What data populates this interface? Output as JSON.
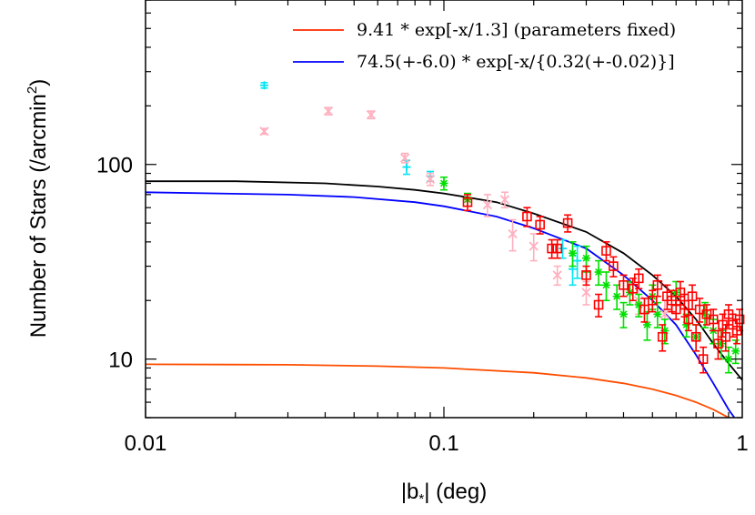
{
  "chart_data": {
    "type": "scatter",
    "x_scale": "log",
    "y_scale": "log",
    "xlim": [
      0.01,
      1
    ],
    "ylim": [
      5,
      700
    ],
    "xlabel": "|b*| (deg)",
    "ylabel": "Number of Stars (/arcmin2)",
    "x_ticks": [
      {
        "value": 0.01,
        "label": "0.01"
      },
      {
        "value": 0.1,
        "label": "0.1"
      },
      {
        "value": 1,
        "label": "1"
      }
    ],
    "y_ticks": [
      {
        "value": 10,
        "label": "10"
      },
      {
        "value": 100,
        "label": "100"
      }
    ],
    "legend": {
      "position": "top-right",
      "entries": [
        {
          "label": "9.41 * exp[-x/1.3]  (parameters fixed)",
          "color": "#ff2a00"
        },
        {
          "label": "74.5(+-6.0) * exp[-x/{0.32(+-0.02)}]",
          "color": "#0000ff"
        }
      ]
    },
    "curves": [
      {
        "color": "#000000",
        "points": [
          [
            0.01,
            82
          ],
          [
            0.02,
            82
          ],
          [
            0.04,
            80
          ],
          [
            0.06,
            77
          ],
          [
            0.08,
            74
          ],
          [
            0.1,
            71
          ],
          [
            0.15,
            64
          ],
          [
            0.2,
            56
          ],
          [
            0.3,
            45
          ],
          [
            0.4,
            35
          ],
          [
            0.5,
            27
          ],
          [
            0.6,
            21
          ],
          [
            0.7,
            16
          ],
          [
            0.8,
            12
          ],
          [
            0.9,
            9.5
          ],
          [
            1,
            7.8
          ]
        ]
      },
      {
        "color": "#0000ff",
        "points": [
          [
            0.01,
            72
          ],
          [
            0.03,
            70
          ],
          [
            0.05,
            68
          ],
          [
            0.08,
            64
          ],
          [
            0.1,
            61
          ],
          [
            0.15,
            54
          ],
          [
            0.2,
            47
          ],
          [
            0.3,
            37
          ],
          [
            0.4,
            27
          ],
          [
            0.5,
            20
          ],
          [
            0.6,
            15
          ],
          [
            0.7,
            10.5
          ],
          [
            0.8,
            7.5
          ],
          [
            0.9,
            5.5
          ],
          [
            0.95,
            4.9
          ]
        ]
      },
      {
        "color": "#ff4e00",
        "points": [
          [
            0.01,
            9.4
          ],
          [
            0.03,
            9.35
          ],
          [
            0.06,
            9.2
          ],
          [
            0.1,
            9.0
          ],
          [
            0.2,
            8.5
          ],
          [
            0.3,
            8.0
          ],
          [
            0.4,
            7.5
          ],
          [
            0.5,
            7.0
          ],
          [
            0.6,
            6.5
          ],
          [
            0.7,
            6.0
          ],
          [
            0.8,
            5.5
          ],
          [
            0.9,
            5.0
          ]
        ]
      }
    ],
    "series": [
      {
        "marker": "plus",
        "color": "#00e5f2",
        "points": [
          [
            0.025,
            255,
            8
          ],
          [
            0.075,
            97,
            8
          ],
          [
            0.09,
            87,
            5
          ],
          [
            0.27,
            29,
            5
          ],
          [
            0.28,
            32,
            6
          ],
          [
            0.25,
            37,
            4
          ]
        ]
      },
      {
        "marker": "cross",
        "color": "#ffb0bf",
        "points": [
          [
            0.025,
            148,
            5
          ],
          [
            0.041,
            188,
            8
          ],
          [
            0.057,
            180,
            8
          ],
          [
            0.074,
            108,
            6
          ],
          [
            0.09,
            84,
            6
          ],
          [
            0.14,
            62,
            8
          ],
          [
            0.16,
            66,
            6
          ],
          [
            0.17,
            44,
            8
          ],
          [
            0.2,
            38,
            6
          ],
          [
            0.24,
            27,
            3
          ],
          [
            0.3,
            22,
            3
          ],
          [
            0.45,
            20,
            3
          ],
          [
            0.55,
            17,
            3
          ]
        ]
      },
      {
        "marker": "star",
        "color": "#00e000",
        "points": [
          [
            0.1,
            80,
            6
          ],
          [
            0.12,
            66,
            5
          ],
          [
            0.27,
            35,
            5
          ],
          [
            0.3,
            33,
            5
          ],
          [
            0.33,
            28,
            4
          ],
          [
            0.35,
            24,
            4
          ],
          [
            0.38,
            21,
            3
          ],
          [
            0.4,
            17,
            2.5
          ],
          [
            0.42,
            22,
            3
          ],
          [
            0.45,
            19,
            2.5
          ],
          [
            0.48,
            15,
            2.5
          ],
          [
            0.5,
            21,
            3
          ],
          [
            0.52,
            17,
            2.5
          ],
          [
            0.55,
            14,
            2
          ],
          [
            0.6,
            22,
            3
          ],
          [
            0.65,
            15,
            2
          ],
          [
            0.7,
            13,
            2
          ],
          [
            0.75,
            17,
            2.5
          ],
          [
            0.8,
            14,
            2
          ],
          [
            0.85,
            12,
            2
          ],
          [
            0.9,
            10,
            1.5
          ],
          [
            0.95,
            11,
            1.5
          ]
        ]
      },
      {
        "marker": "square",
        "color": "#ff0000",
        "points": [
          [
            0.12,
            64,
            6
          ],
          [
            0.19,
            54,
            6
          ],
          [
            0.21,
            49,
            5
          ],
          [
            0.23,
            37,
            4
          ],
          [
            0.24,
            37,
            4
          ],
          [
            0.26,
            50,
            5
          ],
          [
            0.3,
            27,
            3
          ],
          [
            0.33,
            19,
            2.5
          ],
          [
            0.35,
            36,
            4
          ],
          [
            0.37,
            30,
            3.5
          ],
          [
            0.4,
            24,
            3
          ],
          [
            0.43,
            23,
            3
          ],
          [
            0.45,
            26,
            3
          ],
          [
            0.47,
            18,
            2.5
          ],
          [
            0.5,
            20,
            2.5
          ],
          [
            0.52,
            24,
            3
          ],
          [
            0.54,
            13,
            2
          ],
          [
            0.56,
            21,
            3
          ],
          [
            0.58,
            20,
            2.5
          ],
          [
            0.6,
            18,
            2
          ],
          [
            0.62,
            22,
            3
          ],
          [
            0.64,
            19,
            2.5
          ],
          [
            0.66,
            16,
            2
          ],
          [
            0.68,
            21,
            3
          ],
          [
            0.7,
            13,
            2
          ],
          [
            0.72,
            18,
            2.5
          ],
          [
            0.74,
            10,
            1.5
          ],
          [
            0.76,
            17,
            2
          ],
          [
            0.8,
            16,
            2
          ],
          [
            0.83,
            12,
            2
          ],
          [
            0.86,
            15,
            2
          ],
          [
            0.88,
            13,
            2
          ],
          [
            0.9,
            17,
            2
          ],
          [
            0.93,
            15,
            2
          ],
          [
            0.96,
            14,
            2
          ],
          [
            0.98,
            16,
            2
          ]
        ]
      }
    ]
  }
}
